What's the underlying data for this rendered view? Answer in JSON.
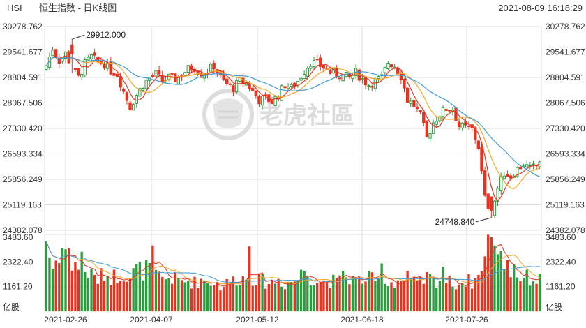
{
  "header": {
    "symbol": "HSI",
    "title": "恒生指数 - 日K线图",
    "timestamp": "2021-08-09 16:18:29"
  },
  "watermark": {
    "text": "老虎社區",
    "logo": "tiger-logo-icon"
  },
  "colors": {
    "up": "#2a9d3c",
    "down": "#e8321e",
    "ma5": "#e8321e",
    "ma10": "#f5a623",
    "ma20": "#3d9bd6",
    "grid": "#dddddd"
  },
  "chart_data": {
    "type": "candlestick",
    "price_axis": {
      "ticks": [
        "30278.762",
        "29541.677",
        "28804.591",
        "28067.506",
        "27330.420",
        "26593.334",
        "25856.249",
        "25119.163",
        "24382.078"
      ],
      "range": [
        24382.078,
        30278.762
      ]
    },
    "volume_axis": {
      "ticks": [
        "3483.60",
        "2322.40",
        "1161.20"
      ],
      "unit": "亿股",
      "range": [
        0,
        3483.6
      ]
    },
    "x_ticks": [
      "2021-02-26",
      "2021-04-07",
      "2021-05-12",
      "2021-06-18",
      "2021-07-26"
    ],
    "annotations": {
      "high": "29912.000",
      "low": "24748.840"
    },
    "anchors": [
      [
        0,
        29150
      ],
      [
        2,
        29650
      ],
      [
        4,
        29300
      ],
      [
        6,
        29500
      ],
      [
        8,
        29100
      ],
      [
        10,
        28800
      ],
      [
        12,
        29200
      ],
      [
        14,
        29400
      ],
      [
        16,
        29250
      ],
      [
        18,
        29200
      ],
      [
        20,
        29000
      ],
      [
        22,
        28900
      ],
      [
        24,
        28400
      ],
      [
        26,
        27950
      ],
      [
        28,
        28300
      ],
      [
        30,
        28600
      ],
      [
        32,
        28800
      ],
      [
        34,
        28900
      ],
      [
        36,
        28700
      ],
      [
        38,
        28800
      ],
      [
        40,
        28750
      ],
      [
        42,
        28900
      ],
      [
        44,
        29050
      ],
      [
        46,
        29100
      ],
      [
        48,
        28900
      ],
      [
        50,
        29000
      ],
      [
        52,
        29150
      ],
      [
        54,
        28800
      ],
      [
        56,
        28600
      ],
      [
        58,
        28500
      ],
      [
        60,
        28700
      ],
      [
        62,
        28650
      ],
      [
        64,
        28400
      ],
      [
        66,
        28150
      ],
      [
        68,
        28200
      ],
      [
        70,
        28100
      ],
      [
        72,
        28300
      ],
      [
        74,
        28600
      ],
      [
        76,
        28500
      ],
      [
        78,
        28700
      ],
      [
        80,
        29000
      ],
      [
        82,
        29250
      ],
      [
        84,
        29200
      ],
      [
        86,
        29100
      ],
      [
        88,
        28950
      ],
      [
        90,
        28900
      ],
      [
        92,
        28850
      ],
      [
        94,
        28800
      ],
      [
        96,
        28950
      ],
      [
        98,
        28750
      ],
      [
        100,
        28600
      ],
      [
        102,
        28700
      ],
      [
        104,
        28800
      ],
      [
        106,
        29250
      ],
      [
        108,
        29150
      ],
      [
        110,
        28850
      ],
      [
        112,
        28150
      ],
      [
        114,
        28000
      ],
      [
        116,
        27700
      ],
      [
        118,
        27050
      ],
      [
        120,
        27500
      ],
      [
        122,
        27750
      ],
      [
        124,
        27900
      ],
      [
        126,
        27900
      ],
      [
        128,
        27400
      ],
      [
        130,
        27350
      ],
      [
        132,
        27300
      ],
      [
        134,
        26800
      ],
      [
        136,
        25300
      ],
      [
        138,
        24900
      ],
      [
        140,
        25600
      ],
      [
        142,
        26050
      ],
      [
        144,
        25950
      ],
      [
        146,
        26150
      ],
      [
        148,
        26300
      ],
      [
        150,
        26150
      ],
      [
        152,
        26250
      ],
      [
        153,
        26400
      ]
    ],
    "volume_profile": [
      [
        0,
        3300
      ],
      [
        2,
        2000
      ],
      [
        4,
        2800
      ],
      [
        6,
        3000
      ],
      [
        8,
        2200
      ],
      [
        10,
        2000
      ],
      [
        12,
        1900
      ],
      [
        14,
        1700
      ],
      [
        16,
        1500
      ],
      [
        18,
        1800
      ],
      [
        20,
        1600
      ],
      [
        22,
        1700
      ],
      [
        24,
        1800
      ],
      [
        26,
        1600
      ],
      [
        28,
        2000
      ],
      [
        30,
        1900
      ],
      [
        32,
        2100
      ],
      [
        34,
        1700
      ],
      [
        36,
        1500
      ],
      [
        38,
        1600
      ],
      [
        40,
        1500
      ],
      [
        42,
        1400
      ],
      [
        44,
        1450
      ],
      [
        46,
        1350
      ],
      [
        48,
        1500
      ],
      [
        50,
        1400
      ],
      [
        52,
        1400
      ],
      [
        54,
        1200
      ],
      [
        56,
        1300
      ],
      [
        58,
        1450
      ],
      [
        60,
        1600
      ],
      [
        62,
        1500
      ],
      [
        64,
        1600
      ],
      [
        66,
        1450
      ],
      [
        68,
        1400
      ],
      [
        70,
        1350
      ],
      [
        72,
        1500
      ],
      [
        74,
        1300
      ],
      [
        76,
        1400
      ],
      [
        78,
        1500
      ],
      [
        80,
        2000
      ],
      [
        82,
        1600
      ],
      [
        84,
        1500
      ],
      [
        86,
        1400
      ],
      [
        88,
        1450
      ],
      [
        90,
        1350
      ],
      [
        92,
        1500
      ],
      [
        94,
        1600
      ],
      [
        96,
        1400
      ],
      [
        98,
        1500
      ],
      [
        100,
        1550
      ],
      [
        102,
        1400
      ],
      [
        104,
        1300
      ],
      [
        106,
        1350
      ],
      [
        108,
        1400
      ],
      [
        110,
        1500
      ],
      [
        112,
        1300
      ],
      [
        114,
        1350
      ],
      [
        116,
        1300
      ],
      [
        118,
        1600
      ],
      [
        120,
        1450
      ],
      [
        122,
        1500
      ],
      [
        124,
        1400
      ],
      [
        126,
        1350
      ],
      [
        128,
        1300
      ],
      [
        130,
        1450
      ],
      [
        132,
        1400
      ],
      [
        134,
        1600
      ],
      [
        136,
        2500
      ],
      [
        138,
        3000
      ],
      [
        140,
        2400
      ],
      [
        142,
        2000
      ],
      [
        144,
        1800
      ],
      [
        146,
        1700
      ],
      [
        148,
        1600
      ],
      [
        150,
        1550
      ],
      [
        152,
        1500
      ],
      [
        153,
        1450
      ]
    ],
    "high_volume_days": [
      [
        0,
        3300
      ],
      [
        9,
        2300
      ],
      [
        11,
        2800
      ],
      [
        33,
        3100
      ],
      [
        63,
        3050
      ],
      [
        79,
        1950
      ],
      [
        92,
        1900
      ],
      [
        104,
        2250
      ],
      [
        112,
        1900
      ],
      [
        123,
        2100
      ],
      [
        135,
        1880
      ],
      [
        137,
        3600
      ],
      [
        139,
        3100
      ],
      [
        141,
        2850
      ],
      [
        143,
        2400
      ],
      [
        145,
        2200
      ]
    ],
    "n_days": 154
  }
}
